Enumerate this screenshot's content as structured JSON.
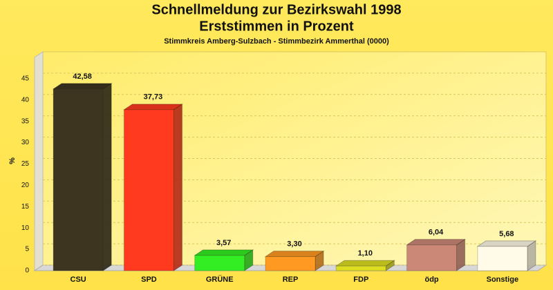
{
  "chart_data": {
    "type": "bar3d",
    "title": [
      "Schnellmeldung zur Bezirkswahl 1998",
      "Erststimmen in Prozent"
    ],
    "subtitle": "Stimmkreis Amberg-Sulzbach - Stimmbezirk Ammerthal (0000)",
    "y_label": "%",
    "categories": [
      "CSU",
      "SPD",
      "GRÜNE",
      "REP",
      "FDP",
      "ödp",
      "Sonstige"
    ],
    "values": [
      42.58,
      37.73,
      3.57,
      3.3,
      1.1,
      6.04,
      5.68
    ],
    "value_labels": [
      "42,58",
      "37,73",
      "3,57",
      "3,30",
      "1,10",
      "6,04",
      "5,68"
    ],
    "colors": [
      "#3d3520",
      "#ff3a1e",
      "#33ee22",
      "#ff9922",
      "#dddd22",
      "#cc8877",
      "#fffbe8"
    ],
    "ylim": [
      0,
      50
    ],
    "yticks": [
      0,
      5,
      10,
      15,
      20,
      25,
      30,
      35,
      40,
      45
    ],
    "grid": true
  }
}
